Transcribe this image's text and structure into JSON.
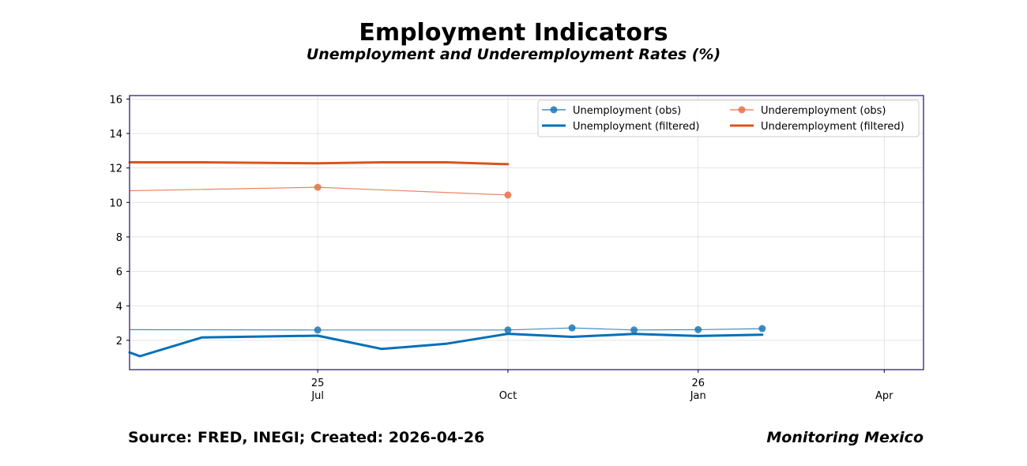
{
  "chart_data": {
    "type": "line",
    "title": "Employment Indicators",
    "subtitle": "Unemployment and Underemployment Rates (%)",
    "xlabel": "",
    "ylabel": "",
    "x_range": [
      "2025-04-01",
      "2026-04-20"
    ],
    "ylim": [
      0.3,
      16.2
    ],
    "y_ticks": [
      2,
      4,
      6,
      8,
      10,
      12,
      14,
      16
    ],
    "x_ticks": [
      {
        "date": "2025-07-01",
        "line1": "25",
        "line2": "Jul"
      },
      {
        "date": "2025-10-01",
        "line1": "",
        "line2": "Oct"
      },
      {
        "date": "2026-01-01",
        "line1": "26",
        "line2": "Jan"
      },
      {
        "date": "2026-04-01",
        "line1": "",
        "line2": "Apr"
      }
    ],
    "grid": true,
    "legend": "top-right",
    "series": [
      {
        "name": "Unemployment (obs)",
        "color": "#1f77b4",
        "style": "thin-markers",
        "points": [
          {
            "x": "2025-04-01",
            "y": 2.62
          },
          {
            "x": "2025-07-01",
            "y": 2.6,
            "marker": true
          },
          {
            "x": "2025-10-01",
            "y": 2.6,
            "marker": true
          },
          {
            "x": "2025-11-01",
            "y": 2.72,
            "marker": true
          },
          {
            "x": "2025-12-01",
            "y": 2.6,
            "marker": true
          },
          {
            "x": "2026-01-01",
            "y": 2.62,
            "marker": true
          },
          {
            "x": "2026-02-01",
            "y": 2.68,
            "marker": true
          }
        ]
      },
      {
        "name": "Unemployment (filtered)",
        "color": "#0070b8",
        "style": "thick",
        "points": [
          {
            "x": "2025-04-01",
            "y": 1.3
          },
          {
            "x": "2025-04-06",
            "y": 1.08
          },
          {
            "x": "2025-05-06",
            "y": 2.17
          },
          {
            "x": "2025-07-01",
            "y": 2.27
          },
          {
            "x": "2025-08-01",
            "y": 1.5
          },
          {
            "x": "2025-09-01",
            "y": 1.8
          },
          {
            "x": "2025-10-01",
            "y": 2.38
          },
          {
            "x": "2025-11-01",
            "y": 2.2
          },
          {
            "x": "2025-12-01",
            "y": 2.37
          },
          {
            "x": "2026-01-01",
            "y": 2.25
          },
          {
            "x": "2026-02-01",
            "y": 2.33
          }
        ]
      },
      {
        "name": "Underemployment (obs)",
        "color": "#e8714a",
        "style": "thin-markers",
        "points": [
          {
            "x": "2025-04-01",
            "y": 10.68
          },
          {
            "x": "2025-07-01",
            "y": 10.88,
            "marker": true
          },
          {
            "x": "2025-10-01",
            "y": 10.43,
            "marker": true
          }
        ]
      },
      {
        "name": "Underemployment (filtered)",
        "color": "#d9541e",
        "style": "thick",
        "points": [
          {
            "x": "2025-04-01",
            "y": 12.33
          },
          {
            "x": "2025-05-06",
            "y": 12.33
          },
          {
            "x": "2025-07-01",
            "y": 12.27
          },
          {
            "x": "2025-08-01",
            "y": 12.33
          },
          {
            "x": "2025-09-01",
            "y": 12.33
          },
          {
            "x": "2025-10-01",
            "y": 12.22
          }
        ]
      }
    ]
  },
  "footer": {
    "source": "Source: FRED, INEGI; Created: 2026-04-26",
    "brand": "Monitoring Mexico"
  },
  "colors": {
    "frame": "#483d8b",
    "grid": "#dddddd"
  }
}
